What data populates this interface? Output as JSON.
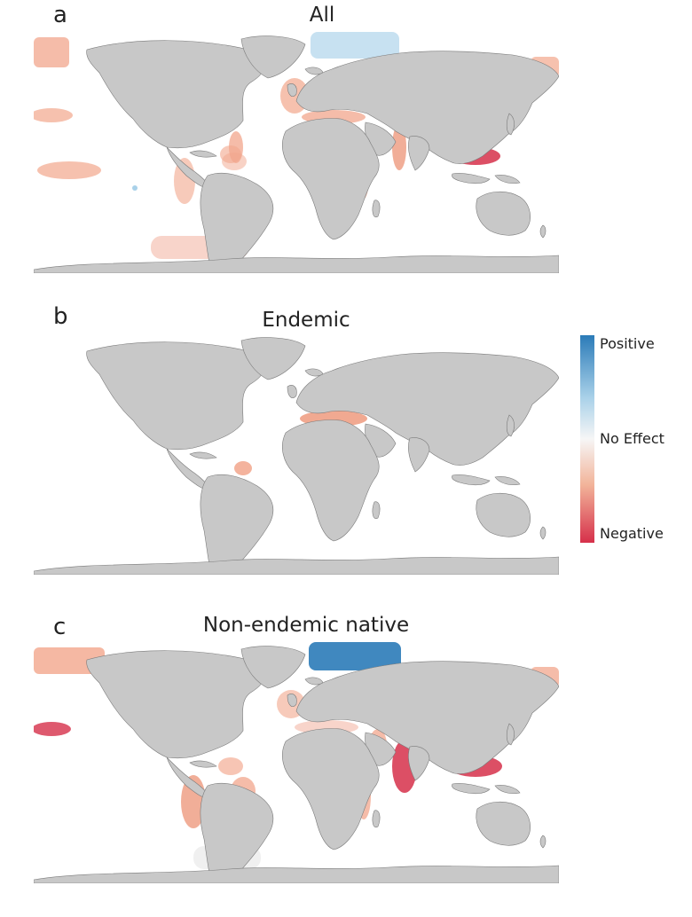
{
  "panels": [
    {
      "letter": "a",
      "title": "All"
    },
    {
      "letter": "b",
      "title": "Endemic"
    },
    {
      "letter": "c",
      "title": "Non-endemic native"
    }
  ],
  "legend": {
    "top_label": "Positive",
    "mid_label": "No Effect",
    "bottom_label": "Negative",
    "colors": {
      "positive": "#2b7bb8",
      "no_effect": "#f6f6f6",
      "negative": "#d6304a"
    }
  },
  "colors": {
    "land": "#c8c8c8",
    "coast": "#7a7a7a"
  }
}
